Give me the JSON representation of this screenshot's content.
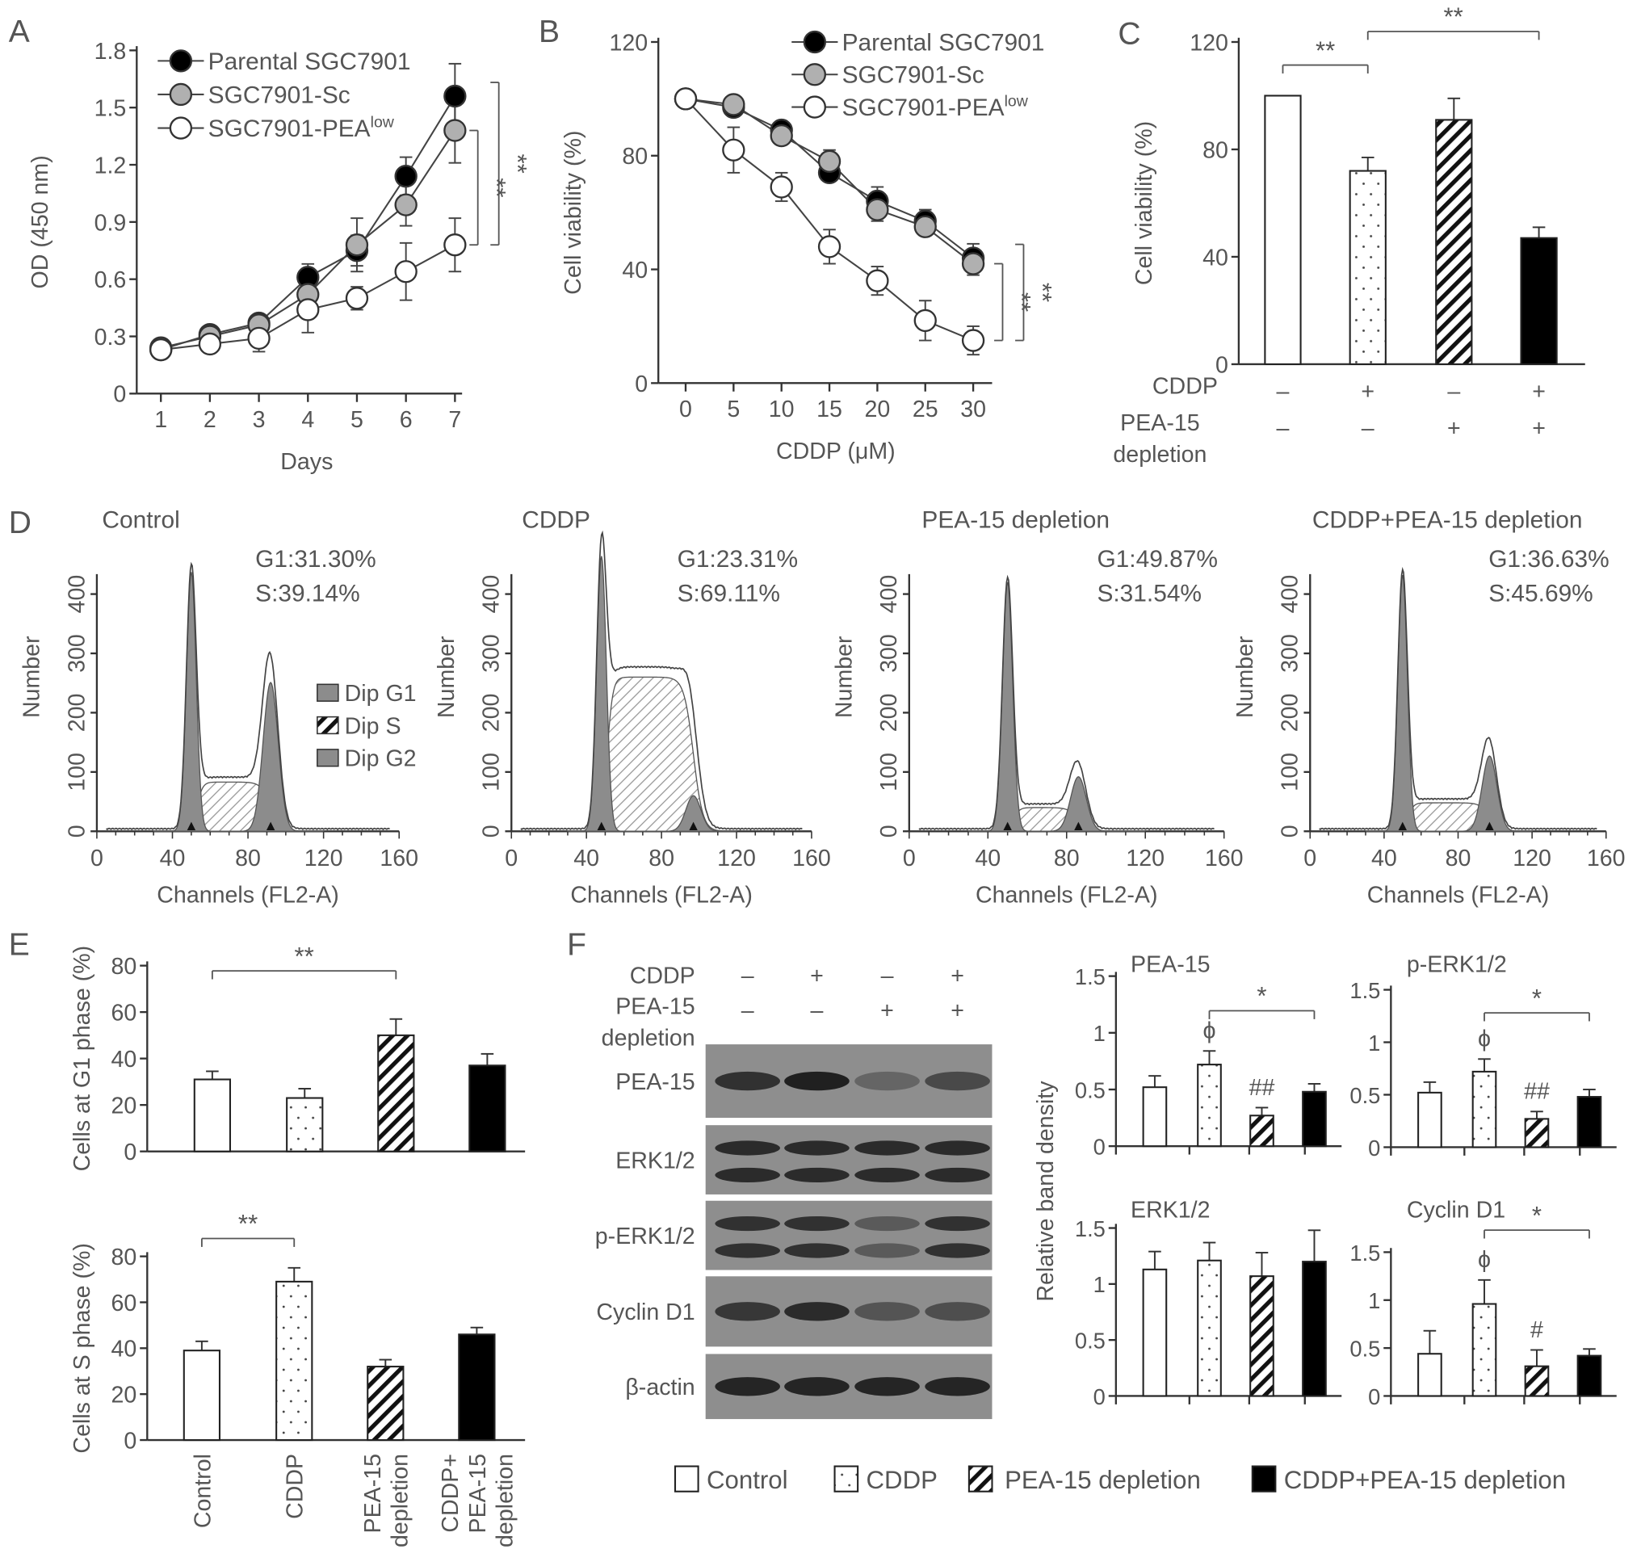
{
  "panel_labels": [
    "A",
    "B",
    "C",
    "D",
    "E",
    "F"
  ],
  "conditions": [
    "Control",
    "CDDP",
    "PEA-15 depletion",
    "CDDP+PEA-15 depletion"
  ],
  "d_legend": [
    "Dip G1",
    "Dip S",
    "Dip G2"
  ],
  "f_ylabel": "Relative band density",
  "blot": {
    "cddp_label": "CDDP",
    "cddp_signs": [
      "–",
      "+",
      "–",
      "+"
    ],
    "dep_label": [
      "PEA-15",
      "depletion"
    ],
    "dep_signs": [
      "–",
      "–",
      "+",
      "+"
    ],
    "rows": [
      {
        "label": "PEA-15",
        "bands": 1,
        "intensity": [
          0.8,
          0.95,
          0.35,
          0.6
        ]
      },
      {
        "label": "ERK1/2",
        "bands": 2,
        "intensity": [
          0.85,
          0.85,
          0.85,
          0.85
        ]
      },
      {
        "label": "p-ERK1/2",
        "bands": 2,
        "intensity": [
          0.8,
          0.8,
          0.45,
          0.8
        ]
      },
      {
        "label": "Cyclin D1",
        "bands": 1,
        "intensity": [
          0.75,
          0.85,
          0.5,
          0.55
        ]
      },
      {
        "label": "β-actin",
        "bands": 1,
        "intensity": [
          0.9,
          0.9,
          0.9,
          0.9
        ]
      }
    ]
  },
  "colors": {
    "fill_control": "#ffffff",
    "fill_cddp": "dotted",
    "fill_depletion": "hatched",
    "fill_combo": "#000000",
    "parental": "#000000",
    "sc": "#b0b0b0",
    "low": "#ffffff"
  },
  "chart_data": [
    {
      "type": "line",
      "panel": "A",
      "xlabel": "Days",
      "ylabel": "OD (450 nm)",
      "ylim": [
        0,
        1.8
      ],
      "x": [
        1,
        2,
        3,
        4,
        5,
        6,
        7
      ],
      "xticks": [
        "1",
        "2",
        "3",
        "4",
        "5",
        "6",
        "7"
      ],
      "yticks": [
        "0",
        "0.3",
        "0.6",
        "0.9",
        "1.2",
        "1.5",
        "1.8"
      ],
      "series": [
        {
          "name": "Parental SGC7901",
          "sup": "",
          "color": "#000000",
          "values": [
            0.23,
            0.31,
            0.37,
            0.61,
            0.75,
            1.14,
            1.56
          ],
          "errors": [
            0.02,
            0.03,
            0.03,
            0.07,
            0.08,
            0.1,
            0.17
          ]
        },
        {
          "name": "SGC7901-Sc",
          "sup": "",
          "color": "#b0b0b0",
          "values": [
            0.24,
            0.3,
            0.36,
            0.52,
            0.78,
            0.99,
            1.38
          ],
          "errors": [
            0.02,
            0.03,
            0.03,
            0.05,
            0.14,
            0.11,
            0.17
          ]
        },
        {
          "name": "SGC7901-PEA",
          "sup": "low",
          "color": "#ffffff",
          "values": [
            0.23,
            0.26,
            0.29,
            0.44,
            0.5,
            0.64,
            0.78
          ],
          "errors": [
            0.02,
            0.03,
            0.07,
            0.12,
            0.06,
            0.15,
            0.14
          ]
        }
      ],
      "annotations": [
        {
          "label": "**",
          "from": "SGC7901-Sc",
          "to": "SGC7901-PEAlow"
        },
        {
          "label": "**",
          "from": "Parental SGC7901",
          "to": "SGC7901-PEAlow"
        }
      ]
    },
    {
      "type": "line",
      "panel": "B",
      "xlabel": "CDDP (μM)",
      "ylabel": "Cell viability (%)",
      "ylim": [
        0,
        120
      ],
      "x": [
        0,
        5,
        10,
        15,
        20,
        25,
        30
      ],
      "xticks": [
        "0",
        "5",
        "10",
        "15",
        "20",
        "25",
        "30"
      ],
      "yticks": [
        "0",
        "40",
        "80",
        "120"
      ],
      "series": [
        {
          "name": "Parental SGC7901",
          "sup": "",
          "color": "#000000",
          "values": [
            100,
            97,
            89,
            74,
            64,
            57,
            44
          ],
          "errors": [
            2,
            3,
            3,
            3,
            5,
            4,
            5
          ]
        },
        {
          "name": "SGC7901-Sc",
          "sup": "",
          "color": "#b0b0b0",
          "values": [
            100,
            98,
            87,
            78,
            61,
            55,
            42
          ],
          "errors": [
            2,
            3,
            3,
            4,
            4,
            3,
            4
          ]
        },
        {
          "name": "SGC7901-PEA",
          "sup": "low",
          "color": "#ffffff",
          "values": [
            100,
            82,
            69,
            48,
            36,
            22,
            15
          ],
          "errors": [
            2,
            8,
            5,
            6,
            5,
            7,
            5
          ]
        }
      ],
      "annotations": [
        {
          "label": "**",
          "from": "SGC7901-Sc",
          "to": "SGC7901-PEAlow"
        },
        {
          "label": "**",
          "from": "Parental SGC7901",
          "to": "SGC7901-PEAlow"
        }
      ]
    },
    {
      "type": "bar",
      "panel": "C",
      "ylabel": "Cell viability (%)",
      "ylim": [
        0,
        120
      ],
      "yticks": [
        "0",
        "40",
        "80",
        "120"
      ],
      "values": [
        100,
        72,
        91,
        47
      ],
      "errors": [
        0,
        5,
        8,
        4
      ],
      "rows": [
        {
          "label": [
            "CDDP"
          ],
          "signs": [
            "–",
            "+",
            "–",
            "+"
          ]
        },
        {
          "label": [
            "PEA-15",
            "depletion"
          ],
          "signs": [
            "–",
            "–",
            "+",
            "+"
          ]
        }
      ],
      "annotations": [
        {
          "label": "**",
          "from": 0,
          "to": 1
        },
        {
          "label": "**",
          "from": 1,
          "to": 3
        }
      ]
    },
    {
      "type": "histogram",
      "panel": "D",
      "title": "Control",
      "xlabel": "Channels (FL2-A)",
      "ylabel": "Number",
      "xticks": [
        "0",
        "40",
        "80",
        "120",
        "160"
      ],
      "yticks": [
        "0",
        "100",
        "200",
        "300",
        "400"
      ],
      "stats": [
        "G1:31.30%",
        "S:39.14%"
      ],
      "peaks": {
        "g1_channel": 50,
        "g1_count": 437,
        "g2_channel": 92,
        "g2_count": 251,
        "s_count": 83
      }
    },
    {
      "type": "histogram",
      "panel": "D",
      "title": "CDDP",
      "xlabel": "Channels (FL2-A)",
      "ylabel": "Number",
      "xticks": [
        "0",
        "40",
        "80",
        "120",
        "160"
      ],
      "yticks": [
        "0",
        "100",
        "200",
        "300",
        "400"
      ],
      "stats": [
        "G1:23.31%",
        "S:69.11%"
      ],
      "peaks": {
        "g1_channel": 48,
        "g1_count": 464,
        "g2_channel": 97,
        "g2_count": 60,
        "s_count": 260
      }
    },
    {
      "type": "histogram",
      "panel": "D",
      "title": "PEA-15 depletion",
      "xlabel": "Channels (FL2-A)",
      "ylabel": "Number",
      "xticks": [
        "0",
        "40",
        "80",
        "120",
        "160"
      ],
      "yticks": [
        "0",
        "100",
        "200",
        "300",
        "400"
      ],
      "stats": [
        "G1:49.87%",
        "S:31.54%"
      ],
      "peaks": {
        "g1_channel": 50,
        "g1_count": 420,
        "g2_channel": 86,
        "g2_count": 92,
        "s_count": 40
      }
    },
    {
      "type": "histogram",
      "panel": "D",
      "title": "CDDP+PEA-15 depletion",
      "xlabel": "Channels (FL2-A)",
      "ylabel": "Number",
      "xticks": [
        "0",
        "40",
        "80",
        "120",
        "160"
      ],
      "yticks": [
        "0",
        "100",
        "200",
        "300",
        "400"
      ],
      "stats": [
        "G1:36.63%",
        "S:45.69%"
      ],
      "peaks": {
        "g1_channel": 50,
        "g1_count": 432,
        "g2_channel": 97,
        "g2_count": 127,
        "s_count": 48
      }
    },
    {
      "type": "bar",
      "panel": "E",
      "ylabel": "Cells at G1 phase (%)",
      "ylim": [
        0,
        80
      ],
      "yticks": [
        "0",
        "20",
        "40",
        "60",
        "80"
      ],
      "values": [
        31,
        23,
        50,
        37
      ],
      "errors": [
        3.5,
        4,
        7,
        5
      ],
      "annotations": [
        {
          "label": "**",
          "from": 0,
          "to": 2
        }
      ]
    },
    {
      "type": "bar",
      "panel": "E",
      "ylabel": "Cells at S phase (%)",
      "ylim": [
        0,
        80
      ],
      "yticks": [
        "0",
        "20",
        "40",
        "60",
        "80"
      ],
      "categories": [
        [
          "Control"
        ],
        [
          "CDDP"
        ],
        [
          "PEA-15",
          "depletion"
        ],
        [
          "CDDP+",
          "PEA-15",
          "depletion"
        ]
      ],
      "values": [
        39,
        69,
        32,
        46
      ],
      "errors": [
        4,
        6,
        3,
        3
      ],
      "annotations": [
        {
          "label": "**",
          "from": 0,
          "to": 1
        }
      ]
    },
    {
      "type": "bar",
      "panel": "F",
      "title": "PEA-15",
      "ylim": [
        0,
        1.5
      ],
      "yticks": [
        "0",
        "0.5",
        "1",
        "1.5"
      ],
      "values": [
        0.52,
        0.72,
        0.27,
        0.48
      ],
      "errors": [
        0.1,
        0.12,
        0.07,
        0.07
      ],
      "marks": [
        "",
        "ϕ",
        "##",
        ""
      ],
      "annotations": [
        {
          "label": "*",
          "from": 1,
          "to": 3
        }
      ]
    },
    {
      "type": "bar",
      "panel": "F",
      "title": "p-ERK1/2",
      "ylim": [
        0,
        1.5
      ],
      "yticks": [
        "0",
        "0.5",
        "1",
        "1.5"
      ],
      "values": [
        0.52,
        0.72,
        0.27,
        0.48
      ],
      "errors": [
        0.1,
        0.12,
        0.07,
        0.07
      ],
      "marks": [
        "",
        "ϕ",
        "##",
        ""
      ],
      "annotations": [
        {
          "label": "*",
          "from": 1,
          "to": 3
        }
      ]
    },
    {
      "type": "bar",
      "panel": "F",
      "title": "ERK1/2",
      "ylim": [
        0,
        1.5
      ],
      "yticks": [
        "0",
        "0.5",
        "1",
        "1.5"
      ],
      "values": [
        1.13,
        1.21,
        1.07,
        1.2
      ],
      "errors": [
        0.16,
        0.16,
        0.21,
        0.28
      ],
      "marks": [
        "",
        "",
        "",
        ""
      ],
      "annotations": []
    },
    {
      "type": "bar",
      "panel": "F",
      "title": "Cyclin D1",
      "ylim": [
        0,
        1.5
      ],
      "yticks": [
        "0",
        "0.5",
        "1",
        "1.5"
      ],
      "values": [
        0.44,
        0.96,
        0.31,
        0.42
      ],
      "errors": [
        0.24,
        0.25,
        0.17,
        0.07
      ],
      "marks": [
        "",
        "ϕ",
        "#",
        ""
      ],
      "annotations": [
        {
          "label": "*",
          "from": 1,
          "to": 3
        }
      ]
    }
  ]
}
